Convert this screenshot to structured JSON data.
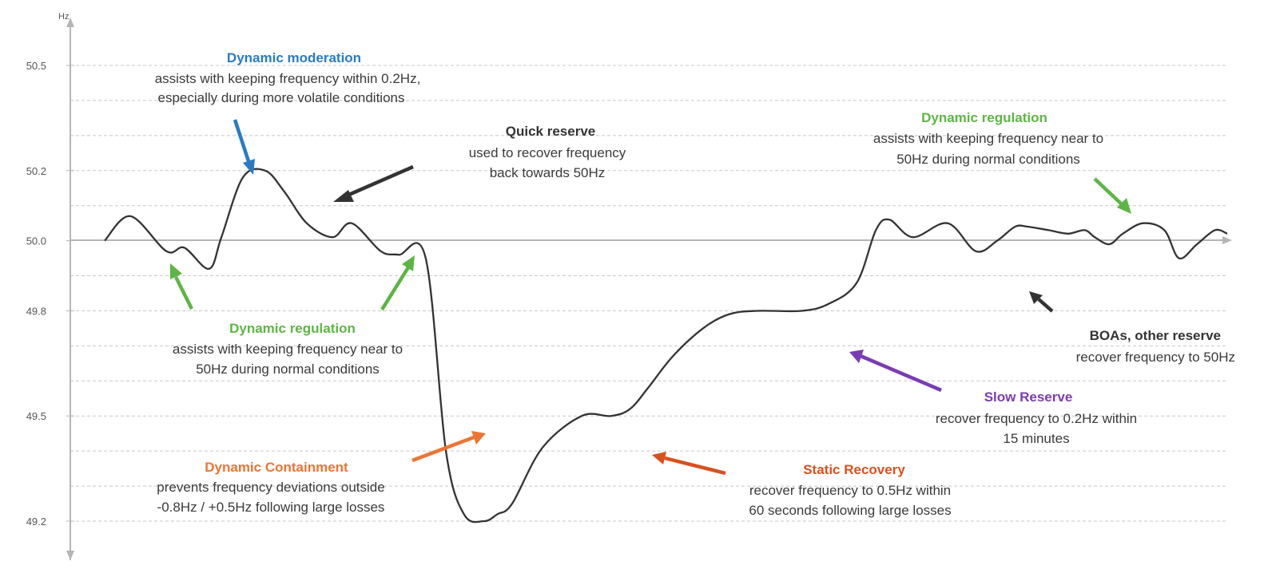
{
  "colors": {
    "blue": "#2a7bc4",
    "green": "#5db544",
    "orange": "#ec7535",
    "red_orange": "#d9501f",
    "purple": "#7a3cb4",
    "dark": "#333333",
    "grid": "#c8c8c8",
    "axis": "#b5b5b5"
  },
  "chart_data": {
    "type": "line",
    "title": "",
    "xlabel": "",
    "ylabel": "Hz",
    "ylim": [
      49.12,
      50.6
    ],
    "yticks": [
      {
        "value": 50.5,
        "label": "50.5"
      },
      {
        "value": 50.2,
        "label": "50.2"
      },
      {
        "value": 50.0,
        "label": "50.0"
      },
      {
        "value": 49.8,
        "label": "49.8"
      },
      {
        "value": 49.5,
        "label": "49.5"
      },
      {
        "value": 49.2,
        "label": "49.2"
      }
    ],
    "gridlines": [
      50.5,
      50.4,
      50.3,
      50.2,
      50.1,
      49.9,
      49.8,
      49.7,
      49.6,
      49.5,
      49.4,
      49.3,
      49.2
    ],
    "x_range": [
      0,
      100
    ],
    "series": [
      {
        "name": "Frequency",
        "x": [
          0,
          2.3,
          5.5,
          7.1,
          9.3,
          10.4,
          12.3,
          14.3,
          16.0,
          18.0,
          20.3,
          22.0,
          24.6,
          26.2,
          28.6,
          30.4,
          32.0,
          33.8,
          35.0,
          36.3,
          39.0,
          42.5,
          45.1,
          46.8,
          48.4,
          50.6,
          53.3,
          55.6,
          58.1,
          62.1,
          64.5,
          67.0,
          68.7,
          69.9,
          72.0,
          75.1,
          77.6,
          79.5,
          81.1,
          82.2,
          84.1,
          85.8,
          87.3,
          88.2,
          89.5,
          90.7,
          92.5,
          94.4,
          95.7,
          97.3,
          98.9,
          100
        ],
        "y": [
          50.0,
          50.07,
          49.97,
          49.98,
          49.92,
          50.01,
          50.18,
          50.2,
          50.14,
          50.05,
          50.01,
          50.05,
          49.97,
          49.96,
          49.95,
          49.4,
          49.22,
          49.2,
          49.22,
          49.25,
          49.41,
          49.5,
          49.5,
          49.52,
          49.58,
          49.67,
          49.75,
          49.79,
          49.8,
          49.8,
          49.82,
          49.88,
          50.03,
          50.06,
          50.01,
          50.05,
          49.97,
          50.0,
          50.04,
          50.04,
          50.03,
          50.02,
          50.03,
          50.01,
          49.99,
          50.02,
          50.05,
          50.03,
          49.95,
          49.99,
          50.03,
          50.02
        ]
      }
    ],
    "annotations": [
      {
        "id": "dynamic-moderation",
        "title": "Dynamic moderation",
        "lines": [
          "assists with keeping frequency within 0.2Hz,",
          "especially during more volatile conditions"
        ],
        "color": "#2a7bc4",
        "align": "center"
      },
      {
        "id": "quick-reserve",
        "title": "Quick reserve",
        "lines": [
          "used to  recover frequency",
          "back towards 50Hz"
        ],
        "color": "#333333",
        "align": "center"
      },
      {
        "id": "dynamic-regulation-right",
        "title": "Dynamic regulation",
        "lines": [
          "assists with keeping frequency near to",
          "50Hz during normal conditions"
        ],
        "color": "#5db544",
        "align": "center"
      },
      {
        "id": "dynamic-regulation-left",
        "title": "Dynamic regulation",
        "lines": [
          "assists with keeping frequency near to",
          "50Hz during normal conditions"
        ],
        "color": "#5db544",
        "align": "center"
      },
      {
        "id": "boas-other-reserve",
        "title": "BOAs, other reserve",
        "lines": [
          "recover frequency to 50Hz"
        ],
        "color": "#333333",
        "align": "right"
      },
      {
        "id": "slow-reserve",
        "title": "Slow Reserve",
        "lines": [
          "recover frequency to 0.2Hz within",
          "15 minutes"
        ],
        "color": "#7a3cb4",
        "align": "center"
      },
      {
        "id": "dynamic-containment",
        "title": "Dynamic Containment",
        "lines": [
          "prevents frequency deviations outside",
          "-0.8Hz / +0.5Hz following large losses"
        ],
        "color": "#ec7535",
        "align": "center"
      },
      {
        "id": "static-recovery",
        "title": "Static Recovery",
        "lines": [
          "recover frequency to 0.5Hz within",
          "60 seconds following large losses"
        ],
        "color": "#d9501f",
        "align": "center"
      }
    ]
  }
}
